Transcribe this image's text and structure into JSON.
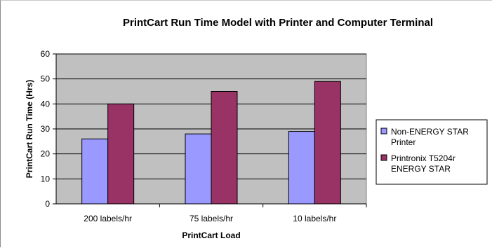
{
  "chart_data": {
    "type": "bar",
    "title": "PrintCart Run Time Model with Printer and Computer Terminal",
    "xlabel": "PrintCart Load",
    "ylabel": "PrintCart Run Time (Hrs)",
    "categories": [
      "200 labels/hr",
      "75 labels/hr",
      "10 labels/hr"
    ],
    "series": [
      {
        "name": "Non-ENERGY STAR Printer",
        "legend_lines": [
          "Non-ENERGY STAR",
          "Printer"
        ],
        "values": [
          26,
          28,
          29
        ],
        "color": "#9999ff"
      },
      {
        "name": "Printronix T5204r ENERGY STAR",
        "legend_lines": [
          "Printronix T5204r",
          "ENERGY STAR"
        ],
        "values": [
          40,
          45,
          49
        ],
        "color": "#993366"
      }
    ],
    "ylim": [
      0,
      60
    ],
    "yticks": [
      0,
      10,
      20,
      30,
      40,
      50,
      60
    ],
    "grid": true,
    "plot_background": "#c0c0c0",
    "legend_position": "right"
  }
}
